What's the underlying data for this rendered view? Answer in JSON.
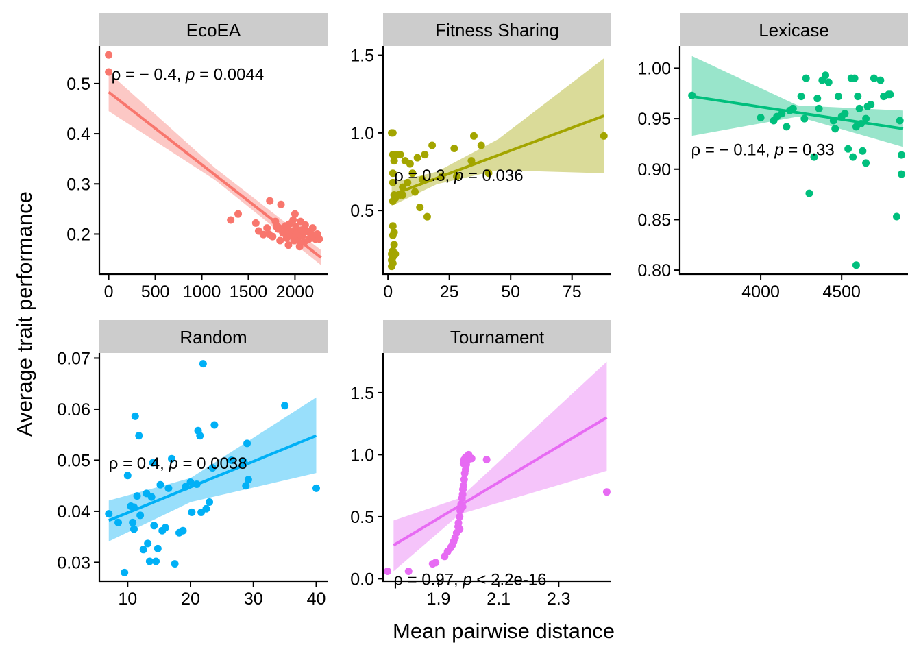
{
  "figure": {
    "xlabel": "Mean pairwise distance",
    "ylabel": "Average trait performance"
  },
  "chart_data": [
    {
      "type": "scatter",
      "title": "EcoEA",
      "color": "#F8766D",
      "xlim": [
        -100,
        2350
      ],
      "ylim": [
        0.12,
        0.575
      ],
      "xticks": [
        0,
        500,
        1000,
        1500,
        2000
      ],
      "xtick_labels": [
        "0",
        "500",
        "1000",
        "1500",
        "2000"
      ],
      "yticks": [
        0.2,
        0.3,
        0.4,
        0.5
      ],
      "ytick_labels": [
        "0.2",
        "0.3",
        "0.4",
        "0.5"
      ],
      "annotation": {
        "pre": "ρ = − 0.4, ",
        "p": "p",
        "post": " = 0.0044",
        "x": 30,
        "y": 0.52
      },
      "fit": {
        "x0": 0,
        "y0": 0.483,
        "x1": 2280,
        "y1": 0.153
      },
      "band": [
        {
          "x": 0,
          "lo": 0.445,
          "hi": 0.522
        },
        {
          "x": 1140,
          "lo": 0.308,
          "hi": 0.332
        },
        {
          "x": 2280,
          "lo": 0.138,
          "hi": 0.168
        }
      ],
      "points": [
        [
          0,
          0.557
        ],
        [
          0,
          0.523
        ],
        [
          1310,
          0.228
        ],
        [
          1390,
          0.24
        ],
        [
          1580,
          0.222
        ],
        [
          1610,
          0.206
        ],
        [
          1660,
          0.199
        ],
        [
          1700,
          0.212
        ],
        [
          1730,
          0.266
        ],
        [
          1760,
          0.195
        ],
        [
          1790,
          0.225
        ],
        [
          1820,
          0.21
        ],
        [
          1850,
          0.259
        ],
        [
          1840,
          0.187
        ],
        [
          1870,
          0.202
        ],
        [
          1900,
          0.216
        ],
        [
          1910,
          0.192
        ],
        [
          1930,
          0.178
        ],
        [
          1940,
          0.22
        ],
        [
          1960,
          0.205
        ],
        [
          1970,
          0.196
        ],
        [
          1990,
          0.187
        ],
        [
          2000,
          0.24
        ],
        [
          2010,
          0.215
        ],
        [
          2020,
          0.202
        ],
        [
          2030,
          0.188
        ],
        [
          2050,
          0.175
        ],
        [
          2060,
          0.225
        ],
        [
          2070,
          0.208
        ],
        [
          2080,
          0.197
        ],
        [
          2100,
          0.184
        ],
        [
          2110,
          0.218
        ],
        [
          2130,
          0.205
        ],
        [
          2150,
          0.19
        ],
        [
          2170,
          0.2
        ],
        [
          2190,
          0.212
        ],
        [
          2200,
          0.196
        ],
        [
          2220,
          0.19
        ],
        [
          2240,
          0.2
        ],
        [
          2260,
          0.19
        ],
        [
          1720,
          0.2
        ],
        [
          1800,
          0.215
        ],
        [
          1920,
          0.205
        ],
        [
          1980,
          0.228
        ],
        [
          2040,
          0.195
        ]
      ]
    },
    {
      "type": "scatter",
      "title": "Fitness Sharing",
      "color": "#A3A500",
      "xlim": [
        -2,
        91
      ],
      "ylim": [
        0.09,
        1.56
      ],
      "xticks": [
        0,
        25,
        50,
        75
      ],
      "xtick_labels": [
        "0",
        "25",
        "50",
        "75"
      ],
      "yticks": [
        0.5,
        1.0,
        1.5
      ],
      "ytick_labels": [
        "0.5",
        "1.0",
        "1.5"
      ],
      "annotation": {
        "pre": "ρ = 0.3, ",
        "p": "p",
        "post": " = 0.036",
        "x": 2.5,
        "y": 0.73
      },
      "fit": {
        "x0": 1.5,
        "y0": 0.6,
        "x1": 88,
        "y1": 1.11
      },
      "band": [
        {
          "x": 1.5,
          "lo": 0.53,
          "hi": 0.68
        },
        {
          "x": 20,
          "lo": 0.67,
          "hi": 0.75
        },
        {
          "x": 45,
          "lo": 0.76,
          "hi": 0.96
        },
        {
          "x": 88,
          "lo": 0.74,
          "hi": 1.48
        }
      ],
      "points": [
        [
          1.5,
          1.0
        ],
        [
          2,
          1.0
        ],
        [
          2,
          0.86
        ],
        [
          3.5,
          0.86
        ],
        [
          5,
          0.86
        ],
        [
          2.5,
          0.82
        ],
        [
          2,
          0.74
        ],
        [
          2,
          0.68
        ],
        [
          2.5,
          0.6
        ],
        [
          2,
          0.56
        ],
        [
          3,
          0.58
        ],
        [
          2,
          0.4
        ],
        [
          2.5,
          0.36
        ],
        [
          2,
          0.34
        ],
        [
          2.5,
          0.28
        ],
        [
          2,
          0.24
        ],
        [
          1.5,
          0.22
        ],
        [
          2,
          0.2
        ],
        [
          1.5,
          0.18
        ],
        [
          2,
          0.16
        ],
        [
          1.5,
          0.14
        ],
        [
          3,
          0.22
        ],
        [
          5,
          0.6
        ],
        [
          6,
          0.65
        ],
        [
          7,
          0.82
        ],
        [
          8,
          0.68
        ],
        [
          9,
          0.8
        ],
        [
          10,
          0.74
        ],
        [
          11,
          0.62
        ],
        [
          12,
          0.84
        ],
        [
          14,
          0.7
        ],
        [
          15,
          0.86
        ],
        [
          18,
          0.92
        ],
        [
          13,
          0.52
        ],
        [
          16,
          0.46
        ],
        [
          22,
          0.72
        ],
        [
          27,
          0.9
        ],
        [
          35,
          0.98
        ],
        [
          38,
          0.92
        ],
        [
          34,
          0.82
        ],
        [
          41,
          0.74
        ],
        [
          28,
          0.72
        ],
        [
          88,
          0.98
        ],
        [
          4,
          0.86
        ],
        [
          6,
          0.6
        ]
      ]
    },
    {
      "type": "scatter",
      "title": "Lexicase",
      "color": "#00BF7D",
      "xlim": [
        3500,
        4910
      ],
      "ylim": [
        0.796,
        1.022
      ],
      "xticks": [
        4000,
        4500
      ],
      "xtick_labels": [
        "4000",
        "4500"
      ],
      "yticks": [
        0.8,
        0.85,
        0.9,
        0.95,
        1.0
      ],
      "ytick_labels": [
        "0.80",
        "0.85",
        "0.90",
        "0.95",
        "1.00"
      ],
      "annotation": {
        "pre": "ρ = − 0.14, ",
        "p": "p",
        "post": " = 0.33",
        "x": 3570,
        "y": 0.92
      },
      "fit": {
        "x0": 3575,
        "y0": 0.972,
        "x1": 4880,
        "y1": 0.94
      },
      "band": [
        {
          "x": 3575,
          "lo": 0.933,
          "hi": 1.012
        },
        {
          "x": 4230,
          "lo": 0.952,
          "hi": 0.963
        },
        {
          "x": 4880,
          "lo": 0.922,
          "hi": 0.958
        }
      ],
      "points": [
        [
          3575,
          0.973
        ],
        [
          4000,
          0.951
        ],
        [
          4080,
          0.948
        ],
        [
          4100,
          0.952
        ],
        [
          4130,
          0.955
        ],
        [
          4160,
          0.942
        ],
        [
          4180,
          0.958
        ],
        [
          4200,
          0.96
        ],
        [
          4250,
          0.972
        ],
        [
          4270,
          0.95
        ],
        [
          4280,
          0.99
        ],
        [
          4300,
          0.876
        ],
        [
          4330,
          0.912
        ],
        [
          4350,
          0.97
        ],
        [
          4360,
          0.96
        ],
        [
          4380,
          0.988
        ],
        [
          4400,
          0.993
        ],
        [
          4420,
          0.986
        ],
        [
          4450,
          0.948
        ],
        [
          4460,
          0.94
        ],
        [
          4480,
          0.972
        ],
        [
          4500,
          0.952
        ],
        [
          4520,
          0.955
        ],
        [
          4540,
          0.92
        ],
        [
          4560,
          0.99
        ],
        [
          4570,
          0.912
        ],
        [
          4580,
          0.99
        ],
        [
          4590,
          0.942
        ],
        [
          4600,
          0.972
        ],
        [
          4610,
          0.96
        ],
        [
          4620,
          0.945
        ],
        [
          4630,
          0.918
        ],
        [
          4650,
          0.95
        ],
        [
          4660,
          0.962
        ],
        [
          4680,
          0.964
        ],
        [
          4700,
          0.99
        ],
        [
          4740,
          0.988
        ],
        [
          4760,
          0.972
        ],
        [
          4790,
          0.974
        ],
        [
          4800,
          0.974
        ],
        [
          4840,
          0.853
        ],
        [
          4860,
          0.948
        ],
        [
          4870,
          0.914
        ],
        [
          4870,
          0.895
        ],
        [
          4590,
          0.805
        ],
        [
          4650,
          0.906
        ]
      ]
    },
    {
      "type": "scatter",
      "title": "Random",
      "color": "#00B0F6",
      "xlim": [
        5.5,
        41.8
      ],
      "ylim": [
        0.0263,
        0.071
      ],
      "xticks": [
        10,
        20,
        30,
        40
      ],
      "xtick_labels": [
        "10",
        "20",
        "30",
        "40"
      ],
      "yticks": [
        0.03,
        0.04,
        0.05,
        0.06,
        0.07
      ],
      "ytick_labels": [
        "0.03",
        "0.04",
        "0.05",
        "0.06",
        "0.07"
      ],
      "annotation": {
        "pre": "ρ = 0.4, ",
        "p": "p",
        "post": " = 0.0038",
        "x": 7,
        "y": 0.0495
      },
      "fit": {
        "x0": 7,
        "y0": 0.0382,
        "x1": 40,
        "y1": 0.0548
      },
      "band": [
        {
          "x": 7,
          "lo": 0.0341,
          "hi": 0.0421
        },
        {
          "x": 20,
          "lo": 0.0418,
          "hi": 0.0465
        },
        {
          "x": 40,
          "lo": 0.0475,
          "hi": 0.0623
        }
      ],
      "points": [
        [
          7,
          0.0395
        ],
        [
          8.5,
          0.0378
        ],
        [
          9.5,
          0.028
        ],
        [
          10,
          0.047
        ],
        [
          10.5,
          0.041
        ],
        [
          11,
          0.0408
        ],
        [
          11.2,
          0.0586
        ],
        [
          11.5,
          0.043
        ],
        [
          11.8,
          0.0548
        ],
        [
          12,
          0.0392
        ],
        [
          10.8,
          0.0378
        ],
        [
          11,
          0.0365
        ],
        [
          12.5,
          0.0325
        ],
        [
          13,
          0.0435
        ],
        [
          13.2,
          0.0337
        ],
        [
          13.5,
          0.0302
        ],
        [
          13.8,
          0.0428
        ],
        [
          14.2,
          0.0372
        ],
        [
          14.5,
          0.0302
        ],
        [
          14.8,
          0.0327
        ],
        [
          15.2,
          0.0452
        ],
        [
          15.5,
          0.0362
        ],
        [
          16,
          0.0368
        ],
        [
          16.5,
          0.0445
        ],
        [
          17,
          0.0503
        ],
        [
          17.5,
          0.0297
        ],
        [
          18.2,
          0.0358
        ],
        [
          18.8,
          0.0362
        ],
        [
          19.2,
          0.0448
        ],
        [
          20,
          0.0457
        ],
        [
          20.2,
          0.0398
        ],
        [
          21,
          0.0453
        ],
        [
          21.2,
          0.0558
        ],
        [
          21.5,
          0.0548
        ],
        [
          21.7,
          0.0398
        ],
        [
          22,
          0.0689
        ],
        [
          22.5,
          0.0405
        ],
        [
          23,
          0.0418
        ],
        [
          23.5,
          0.0485
        ],
        [
          23.8,
          0.0569
        ],
        [
          26.5,
          0.05
        ],
        [
          28.5,
          0.0497
        ],
        [
          28.8,
          0.045
        ],
        [
          29,
          0.0533
        ],
        [
          29.2,
          0.0462
        ],
        [
          35,
          0.0607
        ],
        [
          40,
          0.0445
        ],
        [
          14,
          0.0495
        ]
      ]
    },
    {
      "type": "scatter",
      "title": "Tournament",
      "color": "#E76BF3",
      "xlim": [
        1.715,
        2.475
      ],
      "ylim": [
        -0.02,
        1.82
      ],
      "xticks": [
        1.9,
        2.1,
        2.3
      ],
      "xtick_labels": [
        "1.9",
        "2.1",
        "2.3"
      ],
      "yticks": [
        0.0,
        0.5,
        1.0,
        1.5
      ],
      "ytick_labels": [
        "0.0",
        "0.5",
        "1.0",
        "1.5"
      ],
      "annotation": {
        "pre": "ρ = 0.97, ",
        "p": "p",
        "post": " < 2.2e-16",
        "x": 1.75,
        "y": 0.0
      },
      "fit": {
        "x0": 1.75,
        "y0": 0.27,
        "x1": 2.46,
        "y1": 1.3
      },
      "band": [
        {
          "x": 1.75,
          "lo": 0.06,
          "hi": 0.47
        },
        {
          "x": 1.97,
          "lo": 0.52,
          "hi": 0.65
        },
        {
          "x": 2.46,
          "lo": 0.87,
          "hi": 1.75
        }
      ],
      "points": [
        [
          1.73,
          0.06
        ],
        [
          1.8,
          0.06
        ],
        [
          1.88,
          0.12
        ],
        [
          1.89,
          0.13
        ],
        [
          1.92,
          0.18
        ],
        [
          1.93,
          0.22
        ],
        [
          1.94,
          0.25
        ],
        [
          1.945,
          0.27
        ],
        [
          1.95,
          0.3
        ],
        [
          1.955,
          0.33
        ],
        [
          1.96,
          0.37
        ],
        [
          1.965,
          0.42
        ],
        [
          1.966,
          0.45
        ],
        [
          1.97,
          0.5
        ],
        [
          1.972,
          0.55
        ],
        [
          1.975,
          0.6
        ],
        [
          1.978,
          0.65
        ],
        [
          1.98,
          0.68
        ],
        [
          1.981,
          0.72
        ],
        [
          1.983,
          0.75
        ],
        [
          1.985,
          0.8
        ],
        [
          1.987,
          0.85
        ],
        [
          1.99,
          0.88
        ],
        [
          1.992,
          0.92
        ],
        [
          1.995,
          0.95
        ],
        [
          1.998,
          0.97
        ],
        [
          2.0,
          1.0
        ],
        [
          1.99,
          0.98
        ],
        [
          1.985,
          0.96
        ],
        [
          1.983,
          0.93
        ],
        [
          2.01,
          0.97
        ],
        [
          2.06,
          0.96
        ],
        [
          2.46,
          0.7
        ],
        [
          1.98,
          0.58
        ],
        [
          1.97,
          0.4
        ]
      ]
    }
  ]
}
